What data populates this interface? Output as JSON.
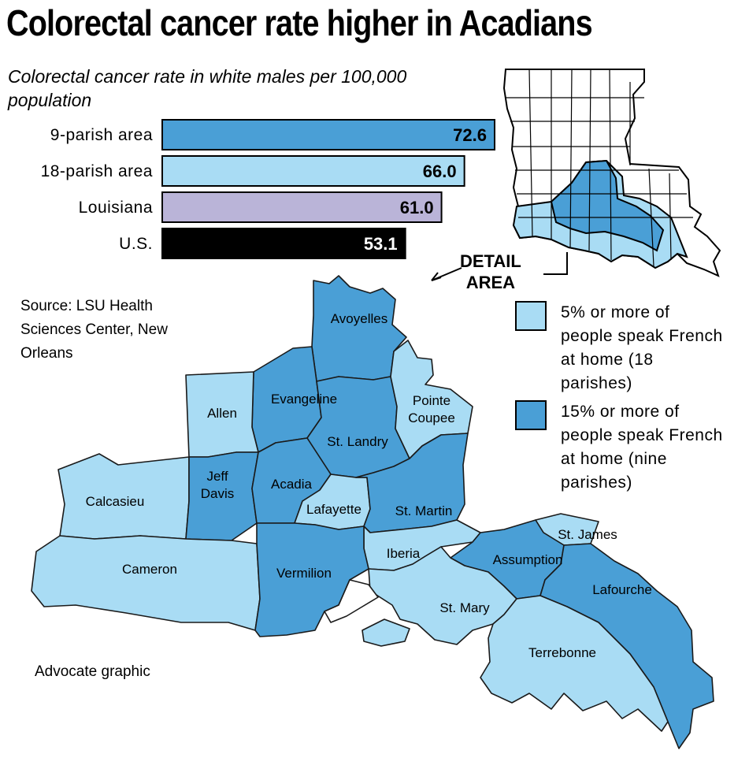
{
  "title": "Colorectal cancer rate higher in Acadians",
  "chart_data": {
    "type": "bar",
    "subtitle": "Colorectal cancer rate in white males per 100,000 population",
    "categories": [
      "9-parish area",
      "18-parish area",
      "Louisiana",
      "U.S."
    ],
    "values": [
      72.6,
      66.0,
      61.0,
      53.1
    ],
    "value_labels": [
      "72.6",
      "66.0",
      "61.0",
      "53.1"
    ],
    "colors": [
      "#4a9fd6",
      "#a9dcf4",
      "#bab4d8",
      "#000000"
    ]
  },
  "source": "Source: LSU Health Sciences Center, New Orleans",
  "credit": "Advocate graphic",
  "locator": {
    "label_line1": "DETAIL",
    "label_line2": "AREA"
  },
  "legend": [
    {
      "color": "#a9dcf4",
      "text": "5% or more of people speak French at home (18 parishes)"
    },
    {
      "color": "#4a9fd6",
      "text": "15% or more of people speak French at home (nine parishes)"
    }
  ],
  "parishes": [
    {
      "name": "Avoyelles",
      "group": "15%"
    },
    {
      "name": "Evangeline",
      "group": "15%"
    },
    {
      "name": "Allen",
      "group": "5%"
    },
    {
      "name": "Pointe Coupee",
      "group": "5%"
    },
    {
      "name": "St. Landry",
      "group": "15%"
    },
    {
      "name": "Calcasieu",
      "group": "5%"
    },
    {
      "name": "Jeff Davis",
      "group": "15%"
    },
    {
      "name": "Acadia",
      "group": "15%"
    },
    {
      "name": "Lafayette",
      "group": "5%"
    },
    {
      "name": "St. Martin",
      "group": "15%"
    },
    {
      "name": "St. James",
      "group": "5%"
    },
    {
      "name": "Cameron",
      "group": "5%"
    },
    {
      "name": "Iberia",
      "group": "5%"
    },
    {
      "name": "Assumption",
      "group": "15%"
    },
    {
      "name": "Vermilion",
      "group": "15%"
    },
    {
      "name": "Lafourche",
      "group": "15%"
    },
    {
      "name": "St. Mary",
      "group": "5%"
    },
    {
      "name": "Terrebonne",
      "group": "5%"
    }
  ]
}
